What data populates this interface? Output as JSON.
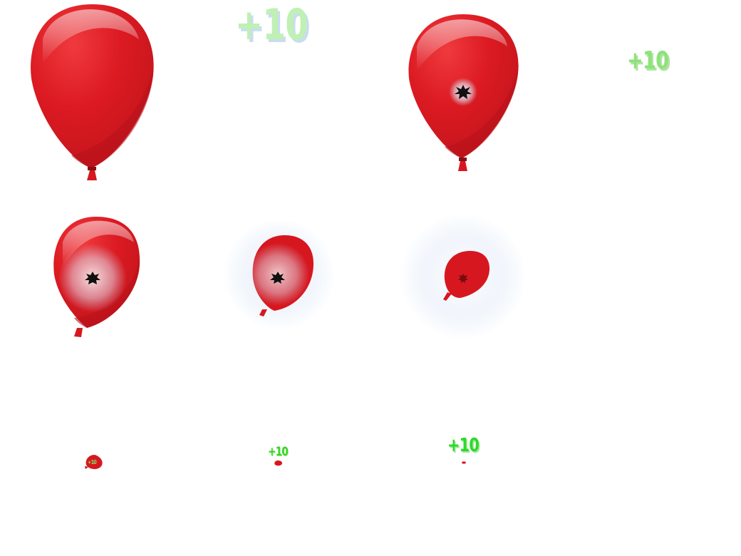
{
  "sprite_sheet": {
    "frames": [
      {
        "name": "balloon-intact"
      },
      {
        "name": "score-popup",
        "text": "+10"
      },
      {
        "name": "balloon-puncture"
      },
      {
        "name": "score-popup-small",
        "text": "+10"
      },
      {
        "name": "balloon-cracking"
      },
      {
        "name": "balloon-bursting"
      },
      {
        "name": "balloon-shrinking"
      },
      {
        "name": "balloon-remnant",
        "text": "+10"
      },
      {
        "name": "balloon-fragment",
        "text": "+10"
      },
      {
        "name": "balloon-speck",
        "text": "+10"
      }
    ],
    "colors": {
      "balloon": "#d7171f",
      "balloon_shade": "#b8121a",
      "score_green": "#2ed82a",
      "burst_blue": "#c9dcf2"
    }
  }
}
